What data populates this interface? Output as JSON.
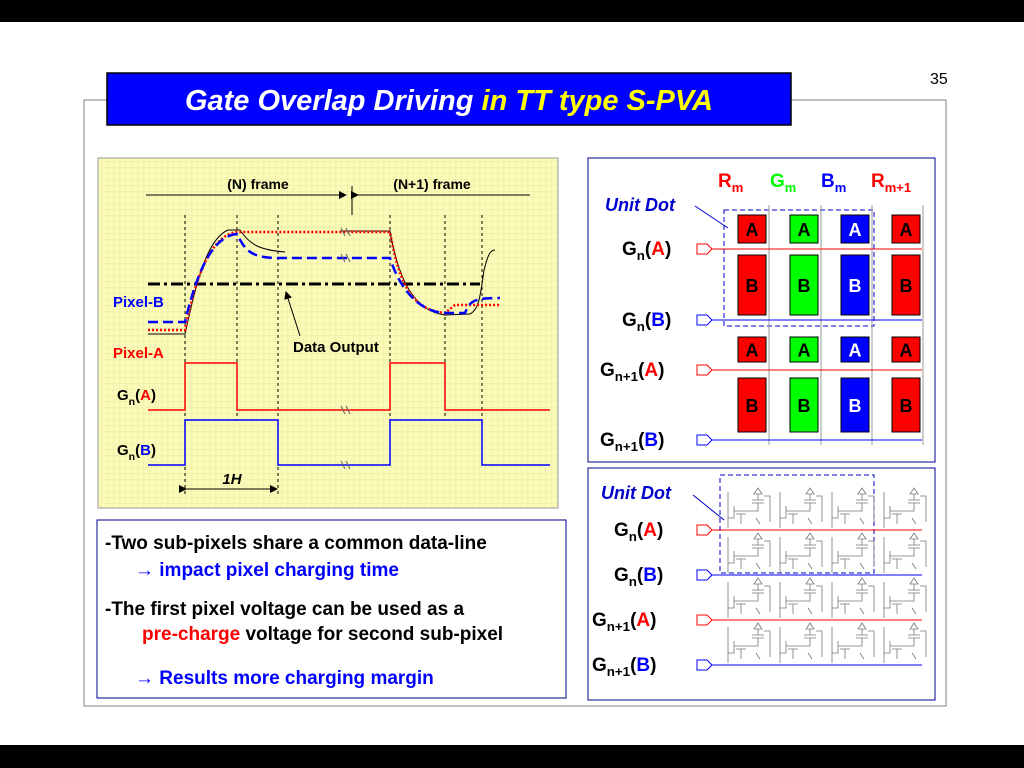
{
  "page_number": "35",
  "title": {
    "main": "Gate Overlap Driving",
    "highlight": " in TT type S-PVA"
  },
  "timing_diagram": {
    "frame_n": "(N) frame",
    "frame_n1": "(N+1) frame",
    "pixel_b": "Pixel-B",
    "pixel_a": "Pixel-A",
    "data_output": "Data Output",
    "period": "1H",
    "gate_labels": [
      {
        "base": "G",
        "sub": "n",
        "open": "(",
        "sig": "A",
        "close": ")"
      },
      {
        "base": "G",
        "sub": "n",
        "open": "(",
        "sig": "B",
        "close": ")"
      }
    ]
  },
  "notes": {
    "line1": "-Two sub-pixels share a common data-line",
    "line2": "→ impact pixel charging time",
    "line3": "-The first pixel voltage can be used as a",
    "line4_highlight": "pre-charge",
    "line4_rest": " voltage for second sub-pixel",
    "line5": "→ Results more charging margin"
  },
  "pixel_layout": {
    "unit_dot": "Unit Dot",
    "columns": [
      {
        "base": "R",
        "sub": "m"
      },
      {
        "base": "G",
        "sub": "m"
      },
      {
        "base": "B",
        "sub": "m"
      },
      {
        "base": "R",
        "sub": "m+1"
      }
    ],
    "gate_labels": [
      {
        "base": "G",
        "sub": "n",
        "open": "(",
        "sig": "A",
        "close": ")"
      },
      {
        "base": "G",
        "sub": "n",
        "open": "(",
        "sig": "B",
        "close": ")"
      },
      {
        "base": "G",
        "sub": "n+1",
        "open": "(",
        "sig": "A",
        "close": ")"
      },
      {
        "base": "G",
        "sub": "n+1",
        "open": "(",
        "sig": "B",
        "close": ")"
      }
    ],
    "cells": [
      [
        "A",
        "A",
        "A",
        "A"
      ],
      [
        "B",
        "B",
        "B",
        "B"
      ],
      [
        "A",
        "A",
        "A",
        "A"
      ],
      [
        "B",
        "B",
        "B",
        "B"
      ]
    ]
  },
  "circuit_layout": {
    "unit_dot": "Unit Dot",
    "gate_labels": [
      {
        "base": "G",
        "sub": "n",
        "open": "(",
        "sig": "A",
        "close": ")"
      },
      {
        "base": "G",
        "sub": "n",
        "open": "(",
        "sig": "B",
        "close": ")"
      },
      {
        "base": "G",
        "sub": "n+1",
        "open": "(",
        "sig": "A",
        "close": ")"
      },
      {
        "base": "G",
        "sub": "n+1",
        "open": "(",
        "sig": "B",
        "close": ")"
      }
    ]
  }
}
